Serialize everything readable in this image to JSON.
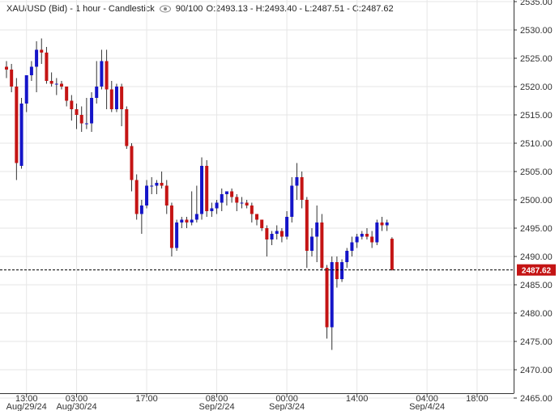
{
  "header": {
    "symbol": "XAU/USD (Bid) - 1 hour - Candlestick",
    "zoom": "90/100",
    "ohlc": "O:2493.13 - H:2493.40 - L:2487.51 - C:2487.62",
    "eye_icon": "eye-icon"
  },
  "colors": {
    "up": "#1515c8",
    "down": "#c41414",
    "grid": "#e6e6e6",
    "axis": "#333333",
    "current_price_bg": "#c41414"
  },
  "chart_data": {
    "type": "candlestick",
    "title": "XAU/USD (Bid) - 1 hour - Candlestick",
    "ylim": [
      2465,
      2535
    ],
    "yticks": [
      2465,
      2470,
      2475,
      2480,
      2485,
      2490,
      2495,
      2500,
      2505,
      2510,
      2515,
      2520,
      2525,
      2530,
      2535
    ],
    "ytick_labels": [
      "2465.00",
      "2470.00",
      "2475.00",
      "2480.00",
      "2485.00",
      "2490.00",
      "2495.00",
      "2500.00",
      "2505.00",
      "2510.00",
      "2515.00",
      "2520.00",
      "2525.00",
      "2530.00",
      "2535.00"
    ],
    "current_price": 2487.62,
    "current_price_label": "2487.62",
    "grid": true,
    "x_ticks": [
      {
        "index": 4,
        "time": "13:00",
        "date": "Aug/29/24"
      },
      {
        "index": 14,
        "time": "03:00",
        "date": "Aug/30/24"
      },
      {
        "index": 28,
        "time": "17:00",
        "date": ""
      },
      {
        "index": 42,
        "time": "08:00",
        "date": "Sep/2/24"
      },
      {
        "index": 56,
        "time": "00:00",
        "date": "Sep/3/24"
      },
      {
        "index": 70,
        "time": "14:00",
        "date": ""
      },
      {
        "index": 84,
        "time": "04:00",
        "date": "Sep/4/24"
      },
      {
        "index": 94,
        "time": "18:00",
        "date": ""
      }
    ],
    "candles": [
      [
        2523.5,
        2524.5,
        2521.5,
        2523.0
      ],
      [
        2523.0,
        2524.0,
        2519.0,
        2520.0
      ],
      [
        2520.0,
        2521.5,
        2503.5,
        2506.5
      ],
      [
        2506.0,
        2518.0,
        2505.5,
        2517.0
      ],
      [
        2517.0,
        2522.0,
        2515.5,
        2522.0
      ],
      [
        2522.0,
        2524.5,
        2521.0,
        2523.5
      ],
      [
        2523.5,
        2528.0,
        2519.0,
        2526.5
      ],
      [
        2526.5,
        2528.5,
        2524.0,
        2526.0
      ],
      [
        2526.0,
        2527.0,
        2520.5,
        2521.0
      ],
      [
        2521.0,
        2522.5,
        2520.0,
        2520.5
      ],
      [
        2520.5,
        2521.5,
        2518.5,
        2520.5
      ],
      [
        2520.5,
        2521.0,
        2519.5,
        2520.0
      ],
      [
        2520.0,
        2520.0,
        2516.5,
        2517.5
      ],
      [
        2517.5,
        2518.5,
        2514.0,
        2516.0
      ],
      [
        2516.0,
        2517.0,
        2512.5,
        2515.0
      ],
      [
        2515.0,
        2516.5,
        2512.0,
        2513.5
      ],
      [
        2513.5,
        2518.0,
        2512.5,
        2513.5
      ],
      [
        2513.5,
        2519.0,
        2512.0,
        2518.0
      ],
      [
        2518.0,
        2524.5,
        2517.0,
        2520.0
      ],
      [
        2520.0,
        2526.5,
        2519.5,
        2524.5
      ],
      [
        2524.5,
        2526.5,
        2516.0,
        2519.5
      ],
      [
        2519.5,
        2521.0,
        2515.5,
        2516.0
      ],
      [
        2516.0,
        2520.5,
        2515.5,
        2520.0
      ],
      [
        2520.0,
        2520.5,
        2513.0,
        2516.0
      ],
      [
        2516.0,
        2516.5,
        2509.0,
        2509.5
      ],
      [
        2509.5,
        2510.0,
        2501.5,
        2503.5
      ],
      [
        2503.5,
        2504.5,
        2496.5,
        2497.5
      ],
      [
        2497.5,
        2500.0,
        2494.0,
        2499.0
      ],
      [
        2499.0,
        2503.5,
        2498.5,
        2502.5
      ],
      [
        2502.5,
        2504.0,
        2501.0,
        2502.5
      ],
      [
        2502.5,
        2503.5,
        2501.0,
        2503.0
      ],
      [
        2503.0,
        2505.0,
        2502.0,
        2502.5
      ],
      [
        2502.5,
        2503.5,
        2497.5,
        2499.0
      ],
      [
        2499.0,
        2499.5,
        2490.0,
        2491.5
      ],
      [
        2491.5,
        2496.5,
        2491.0,
        2496.0
      ],
      [
        2496.0,
        2497.0,
        2495.0,
        2496.5
      ],
      [
        2496.5,
        2497.0,
        2495.0,
        2496.0
      ],
      [
        2496.0,
        2501.5,
        2495.5,
        2496.5
      ],
      [
        2496.5,
        2502.5,
        2496.0,
        2497.5
      ],
      [
        2497.5,
        2507.5,
        2496.5,
        2506.0
      ],
      [
        2506.0,
        2507.0,
        2497.0,
        2498.0
      ],
      [
        2498.0,
        2499.5,
        2497.0,
        2498.5
      ],
      [
        2498.5,
        2500.0,
        2497.5,
        2499.5
      ],
      [
        2499.5,
        2502.0,
        2498.0,
        2501.0
      ],
      [
        2501.0,
        2501.5,
        2499.0,
        2501.5
      ],
      [
        2501.5,
        2502.0,
        2499.5,
        2500.5
      ],
      [
        2500.5,
        2501.0,
        2498.0,
        2499.5
      ],
      [
        2499.5,
        2500.5,
        2498.5,
        2499.5
      ],
      [
        2499.5,
        2500.0,
        2498.5,
        2499.0
      ],
      [
        2499.0,
        2499.5,
        2496.0,
        2497.5
      ],
      [
        2497.5,
        2497.5,
        2495.5,
        2496.5
      ],
      [
        2496.5,
        2496.5,
        2494.5,
        2495.0
      ],
      [
        2495.0,
        2495.5,
        2490.0,
        2493.0
      ],
      [
        2493.0,
        2494.5,
        2492.0,
        2494.0
      ],
      [
        2494.0,
        2495.5,
        2493.0,
        2494.5
      ],
      [
        2494.5,
        2495.0,
        2492.5,
        2493.5
      ],
      [
        2493.5,
        2498.0,
        2493.0,
        2497.0
      ],
      [
        2497.0,
        2504.0,
        2496.0,
        2502.5
      ],
      [
        2502.5,
        2506.5,
        2500.0,
        2504.0
      ],
      [
        2504.0,
        2505.0,
        2498.5,
        2500.0
      ],
      [
        2500.0,
        2500.5,
        2488.0,
        2491.0
      ],
      [
        2491.0,
        2495.0,
        2490.0,
        2493.5
      ],
      [
        2493.5,
        2499.0,
        2489.0,
        2496.0
      ],
      [
        2496.0,
        2497.5,
        2487.5,
        2488.0
      ],
      [
        2488.0,
        2488.5,
        2475.5,
        2477.5
      ],
      [
        2477.5,
        2490.0,
        2473.5,
        2489.0
      ],
      [
        2489.0,
        2490.0,
        2484.5,
        2486.0
      ],
      [
        2486.0,
        2489.5,
        2485.5,
        2489.0
      ],
      [
        2489.0,
        2491.5,
        2488.0,
        2491.0
      ],
      [
        2491.0,
        2493.5,
        2490.0,
        2492.5
      ],
      [
        2492.5,
        2494.0,
        2491.5,
        2493.5
      ],
      [
        2493.5,
        2494.5,
        2493.0,
        2494.0
      ],
      [
        2494.0,
        2495.0,
        2493.0,
        2493.5
      ],
      [
        2493.5,
        2494.5,
        2491.5,
        2492.5
      ],
      [
        2492.5,
        2496.5,
        2492.0,
        2496.0
      ],
      [
        2496.0,
        2497.0,
        2494.5,
        2495.5
      ],
      [
        2495.5,
        2496.5,
        2494.5,
        2496.0
      ],
      [
        2493.13,
        2493.4,
        2487.51,
        2487.62
      ]
    ]
  }
}
